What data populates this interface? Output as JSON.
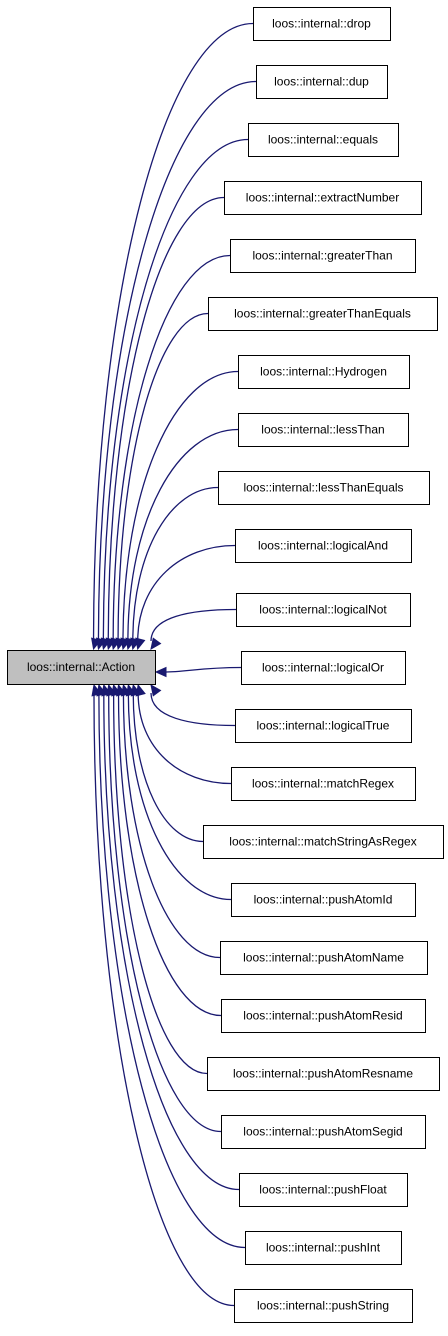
{
  "diagram": {
    "base_class": "loos::internal::Action",
    "derived_classes": [
      "loos::internal::drop",
      "loos::internal::dup",
      "loos::internal::equals",
      "loos::internal::extractNumber",
      "loos::internal::greaterThan",
      "loos::internal::greaterThanEquals",
      "loos::internal::Hydrogen",
      "loos::internal::lessThan",
      "loos::internal::lessThanEquals",
      "loos::internal::logicalAnd",
      "loos::internal::logicalNot",
      "loos::internal::logicalOr",
      "loos::internal::logicalTrue",
      "loos::internal::matchRegex",
      "loos::internal::matchStringAsRegex",
      "loos::internal::pushAtomId",
      "loos::internal::pushAtomName",
      "loos::internal::pushAtomResid",
      "loos::internal::pushAtomResname",
      "loos::internal::pushAtomSegid",
      "loos::internal::pushFloat",
      "loos::internal::pushInt",
      "loos::internal::pushString"
    ],
    "colors": {
      "edge": "#191970",
      "base_fill": "#bfbfbf",
      "node_fill": "#ffffff",
      "border": "#000000"
    }
  }
}
